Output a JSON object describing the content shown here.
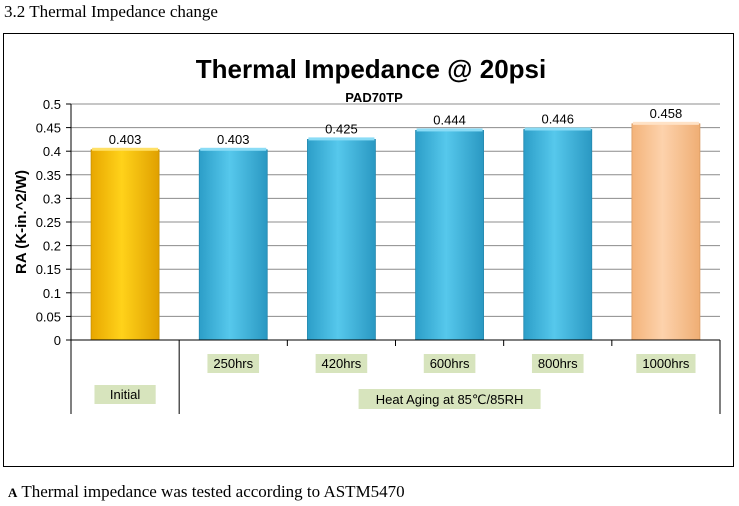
{
  "section_heading": "3.2 Thermal Impedance change",
  "footer": {
    "prefix": "A",
    "text": "Thermal impedance was tested according to ASTM5470"
  },
  "chart_data": {
    "type": "bar",
    "title": "Thermal Impedance @ 20psi",
    "subtitle": "PAD70TP",
    "ylabel": "RA (K-in.^2/W)",
    "xlabel": "",
    "ylim": [
      0,
      0.5
    ],
    "yticks": [
      "0",
      "0.05",
      "0.1",
      "0.15",
      "0.2",
      "0.25",
      "0.3",
      "0.35",
      "0.4",
      "0.45",
      "0.5"
    ],
    "grid": true,
    "categories": [
      "Initial",
      "250hrs",
      "420hrs",
      "600hrs",
      "800hrs",
      "1000hrs"
    ],
    "values": [
      0.403,
      0.403,
      0.425,
      0.444,
      0.446,
      0.458
    ],
    "value_labels": [
      "0.403",
      "0.403",
      "0.425",
      "0.444",
      "0.446",
      "0.458"
    ],
    "group_labels": {
      "initial": "Initial",
      "aging": "Heat Aging at 85℃/85RH"
    },
    "colors": {
      "initial": "#FFC000",
      "aging": "#3FB6DA",
      "final": "#FBC79A",
      "label_bg": "#D7E4BD"
    }
  }
}
